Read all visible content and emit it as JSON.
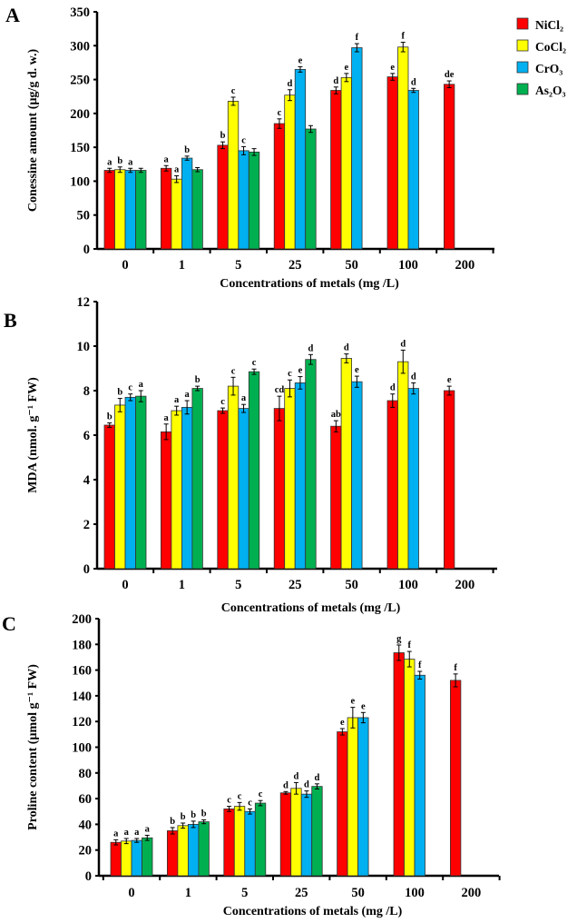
{
  "legend": [
    {
      "name": "NiCl₂",
      "color": "#ff0000"
    },
    {
      "name": "CoCl₂",
      "color": "#ffff00"
    },
    {
      "name": "CrO₃",
      "color": "#00b0f0"
    },
    {
      "name": "As₂O₃",
      "color": "#00b050"
    }
  ],
  "chart_data": [
    {
      "panel": "A",
      "type": "bar",
      "ylabel": "Conessine amount (µg/g d. w.)",
      "xlabel": "Concentrations of metals (mg /L)",
      "ylim": [
        0,
        350
      ],
      "ystep": 50,
      "categories": [
        "0",
        "1",
        "5",
        "25",
        "50",
        "100",
        "200"
      ],
      "series": [
        {
          "name": "NiCl₂",
          "values": [
            116,
            119,
            153,
            185,
            234,
            254,
            243
          ],
          "errors": [
            3,
            4,
            5,
            7,
            5,
            5,
            5
          ],
          "letters": [
            "a",
            "a",
            "b",
            "c",
            "d",
            "e",
            "de"
          ]
        },
        {
          "name": "CoCl₂",
          "values": [
            117,
            103,
            218,
            227,
            253,
            298,
            null
          ],
          "errors": [
            4,
            5,
            6,
            8,
            6,
            7,
            null
          ],
          "letters": [
            "b",
            "a",
            "c",
            "d",
            "e",
            "f",
            ""
          ]
        },
        {
          "name": "CrO₃",
          "values": [
            116,
            134,
            145,
            265,
            297,
            234,
            null
          ],
          "errors": [
            3,
            3,
            6,
            4,
            6,
            3,
            null
          ],
          "letters": [
            "a",
            "b",
            "c",
            "e",
            "f",
            "d",
            ""
          ]
        },
        {
          "name": "As₂O₃",
          "values": [
            116,
            117,
            143,
            177,
            null,
            null,
            null
          ],
          "errors": [
            3,
            3,
            5,
            5,
            null,
            null,
            null
          ],
          "letters": [
            "",
            "",
            "",
            "",
            "",
            "",
            ""
          ]
        }
      ]
    },
    {
      "panel": "B",
      "type": "bar",
      "ylabel": "MDA (nmol. g⁻¹ FW)",
      "xlabel": "Concentrations of metals (mg /L)",
      "ylim": [
        0,
        12
      ],
      "ystep": 2,
      "categories": [
        "0",
        "1",
        "5",
        "25",
        "50",
        "100",
        "200"
      ],
      "series": [
        {
          "name": "NiCl₂",
          "values": [
            6.45,
            6.15,
            7.1,
            7.2,
            6.4,
            7.55,
            8.0
          ],
          "errors": [
            0.1,
            0.35,
            0.12,
            0.55,
            0.25,
            0.3,
            0.2
          ],
          "letters": [
            "b",
            "a",
            "c",
            "cd",
            "ab",
            "d",
            "e"
          ]
        },
        {
          "name": "CoCl₂",
          "values": [
            7.35,
            7.1,
            8.2,
            8.1,
            9.45,
            9.3,
            null
          ],
          "errors": [
            0.3,
            0.2,
            0.4,
            0.38,
            0.2,
            0.52,
            null
          ],
          "letters": [
            "b",
            "a",
            "c",
            "c",
            "d",
            "d",
            ""
          ]
        },
        {
          "name": "CrO₃",
          "values": [
            7.7,
            7.25,
            7.2,
            8.35,
            8.4,
            8.1,
            null
          ],
          "errors": [
            0.15,
            0.3,
            0.18,
            0.28,
            0.25,
            0.25,
            null
          ],
          "letters": [
            "c",
            "a",
            "a",
            "e",
            "e",
            "d",
            ""
          ]
        },
        {
          "name": "As₂O₃",
          "values": [
            7.75,
            8.1,
            8.85,
            9.4,
            null,
            null,
            null
          ],
          "errors": [
            0.25,
            0.1,
            0.12,
            0.22,
            null,
            null,
            null
          ],
          "letters": [
            "a",
            "b",
            "c",
            "d",
            "",
            "",
            ""
          ]
        }
      ]
    },
    {
      "panel": "C",
      "type": "bar",
      "ylabel": "Proline content (µmol g⁻¹ FW)",
      "xlabel": "Concentrations of metals (mg /L)",
      "ylim": [
        0,
        200
      ],
      "ystep": 20,
      "categories": [
        "0",
        "1",
        "5",
        "25",
        "50",
        "100",
        "200"
      ],
      "series": [
        {
          "name": "NiCl₂",
          "values": [
            26,
            35,
            52,
            64.5,
            112,
            173.5,
            152
          ],
          "errors": [
            2,
            2.5,
            2,
            1,
            2.5,
            6,
            5
          ],
          "letters": [
            "a",
            "b",
            "c",
            "d",
            "e",
            "g",
            "f"
          ]
        },
        {
          "name": "CoCl₂",
          "values": [
            27,
            39,
            54,
            68,
            123,
            168.5,
            null
          ],
          "errors": [
            2,
            2,
            3,
            4.5,
            8,
            6,
            null
          ],
          "letters": [
            "a",
            "b",
            "c",
            "d",
            "e",
            "f",
            ""
          ]
        },
        {
          "name": "CrO₃",
          "values": [
            27.5,
            40,
            50,
            63.5,
            123,
            156,
            null
          ],
          "errors": [
            1.5,
            2.5,
            2,
            2.5,
            4,
            3,
            null
          ],
          "letters": [
            "a",
            "b",
            "c",
            "d",
            "e",
            "f",
            ""
          ]
        },
        {
          "name": "As₂O₃",
          "values": [
            29.5,
            42,
            56.5,
            69.5,
            null,
            null,
            null
          ],
          "errors": [
            2,
            1.5,
            2,
            2,
            null,
            null,
            null
          ],
          "letters": [
            "a",
            "b",
            "c",
            "d",
            "",
            "",
            ""
          ]
        }
      ]
    }
  ]
}
